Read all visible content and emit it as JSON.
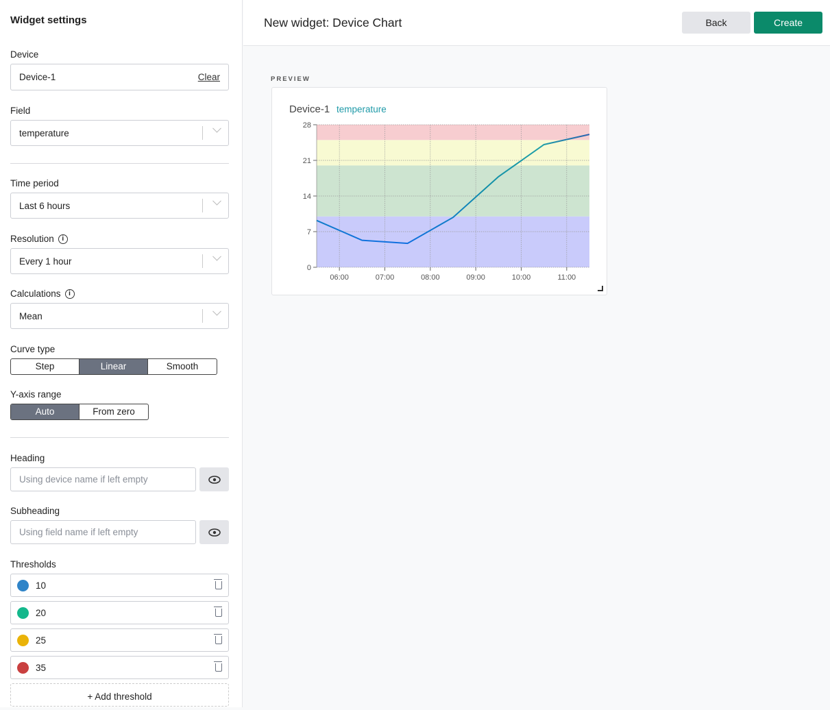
{
  "sidebar": {
    "title": "Widget settings",
    "device": {
      "label": "Device",
      "value": "Device-1",
      "clear": "Clear"
    },
    "field": {
      "label": "Field",
      "value": "temperature"
    },
    "time_period": {
      "label": "Time period",
      "value": "Last 6 hours"
    },
    "resolution": {
      "label": "Resolution",
      "value": "Every 1 hour"
    },
    "calculations": {
      "label": "Calculations",
      "value": "Mean"
    },
    "curve_type": {
      "label": "Curve type",
      "options": [
        "Step",
        "Linear",
        "Smooth"
      ],
      "selected": "Linear"
    },
    "y_axis_range": {
      "label": "Y-axis range",
      "options": [
        "Auto",
        "From zero"
      ],
      "selected": "Auto"
    },
    "heading": {
      "label": "Heading",
      "placeholder": "Using device name if left empty"
    },
    "subheading": {
      "label": "Subheading",
      "placeholder": "Using field name if left empty"
    },
    "thresholds": {
      "label": "Thresholds",
      "items": [
        {
          "value": "10",
          "color": "#2f84c8"
        },
        {
          "value": "20",
          "color": "#14b88c"
        },
        {
          "value": "25",
          "color": "#eab308"
        },
        {
          "value": "35",
          "color": "#c94040"
        }
      ],
      "add_label": "+ Add threshold"
    }
  },
  "header": {
    "title": "New widget: Device Chart",
    "back": "Back",
    "create": "Create",
    "create_color": "#0b8a6a"
  },
  "preview": {
    "label": "PREVIEW",
    "heading": "Device-1",
    "subheading": "temperature"
  },
  "chart_data": {
    "type": "line",
    "x": [
      "05:30",
      "06:30",
      "07:30",
      "08:30",
      "09:30",
      "10:30",
      "11:30"
    ],
    "values": [
      9.2,
      5.3,
      4.7,
      9.8,
      17.8,
      24.1,
      26.1
    ],
    "xticks": [
      "06:00",
      "07:00",
      "08:00",
      "09:00",
      "10:00",
      "11:00"
    ],
    "yticks": [
      0,
      7,
      14,
      21,
      28
    ],
    "ylim": [
      0,
      28
    ],
    "grid": true,
    "bands": [
      {
        "from": 0,
        "to": 10,
        "color": "#c9cbfb"
      },
      {
        "from": 10,
        "to": 20,
        "color": "#cde4d0"
      },
      {
        "from": 20,
        "to": 25,
        "color": "#f8fad2"
      },
      {
        "from": 25,
        "to": 28,
        "color": "#f7cdd0"
      }
    ]
  }
}
